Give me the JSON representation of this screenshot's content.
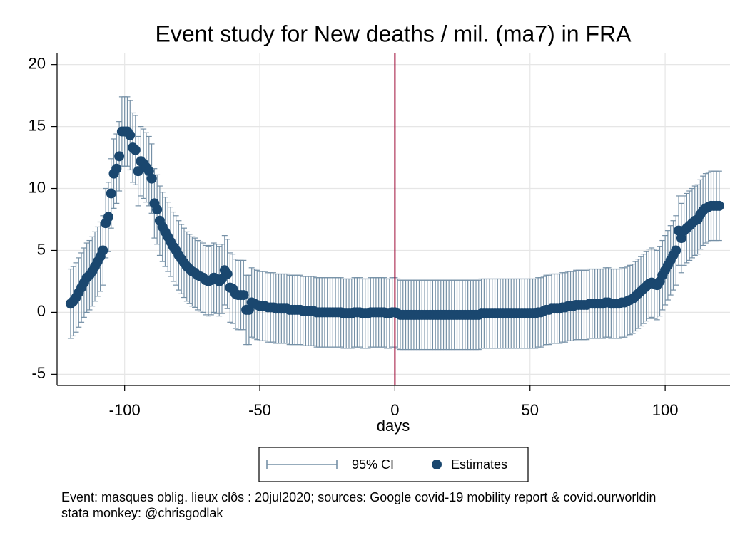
{
  "chart_data": {
    "type": "errorscatter",
    "title": "Event study for New deaths / mil. (ma7) in FRA",
    "x_label": "days",
    "notes": [
      "Event: masques oblig. lieux clôs : 20jul2020; sources: Google covid-19 mobility report & covid.ourworldin",
      "stata monkey: @chrisgodlak"
    ],
    "xlim": [
      -125,
      124
    ],
    "ylim": [
      -5.9,
      20.9
    ],
    "xticks": [
      -100,
      -50,
      0,
      50,
      100
    ],
    "yticks": [
      -5,
      0,
      5,
      10,
      15,
      20
    ],
    "grid": true,
    "reference_line": 0,
    "reference_color": "#a0103c",
    "x": [
      -120,
      -119,
      -118,
      -117,
      -116,
      -115,
      -114,
      -113,
      -112,
      -111,
      -110,
      -109,
      -108,
      -107,
      -106,
      -105,
      -104,
      -103,
      -102,
      -101,
      -100,
      -99,
      -98,
      -97,
      -96,
      -95,
      -94,
      -93,
      -92,
      -91,
      -90,
      -89,
      -88,
      -87,
      -86,
      -85,
      -84,
      -83,
      -82,
      -81,
      -80,
      -79,
      -78,
      -77,
      -76,
      -75,
      -74,
      -73,
      -72,
      -71,
      -70,
      -69,
      -68,
      -67,
      -66,
      -65,
      -64,
      -63,
      -62,
      -61,
      -60,
      -59,
      -58,
      -57,
      -56,
      -55,
      -54,
      -53,
      -52,
      -51,
      -50,
      -49,
      -48,
      -47,
      -46,
      -45,
      -44,
      -43,
      -42,
      -41,
      -40,
      -39,
      -38,
      -37,
      -36,
      -35,
      -34,
      -33,
      -32,
      -31,
      -30,
      -29,
      -28,
      -27,
      -26,
      -25,
      -24,
      -23,
      -22,
      -21,
      -20,
      -19,
      -18,
      -17,
      -16,
      -15,
      -14,
      -13,
      -12,
      -11,
      -10,
      -9,
      -8,
      -7,
      -6,
      -5,
      -4,
      -3,
      -2,
      -1,
      0,
      1,
      2,
      3,
      4,
      5,
      6,
      7,
      8,
      9,
      10,
      11,
      12,
      13,
      14,
      15,
      16,
      17,
      18,
      19,
      20,
      21,
      22,
      23,
      24,
      25,
      26,
      27,
      28,
      29,
      30,
      31,
      32,
      33,
      34,
      35,
      36,
      37,
      38,
      39,
      40,
      41,
      42,
      43,
      44,
      45,
      46,
      47,
      48,
      49,
      50,
      51,
      52,
      53,
      54,
      55,
      56,
      57,
      58,
      59,
      60,
      61,
      62,
      63,
      64,
      65,
      66,
      67,
      68,
      69,
      70,
      71,
      72,
      73,
      74,
      75,
      76,
      77,
      78,
      79,
      80,
      81,
      82,
      83,
      84,
      85,
      86,
      87,
      88,
      89,
      90,
      91,
      92,
      93,
      94,
      95,
      96,
      97,
      98,
      99,
      100,
      101,
      102,
      103,
      104,
      105,
      106,
      107,
      108,
      109,
      110,
      111,
      112,
      113,
      114,
      115,
      116,
      117,
      118,
      119,
      120
    ],
    "series": [
      {
        "name": "95% CI",
        "color": "#7590a6",
        "error": 2.8
      },
      {
        "name": "Estimates",
        "color": "#1a476f",
        "values": [
          0.7,
          0.9,
          1.2,
          1.6,
          2.0,
          2.4,
          2.8,
          3.0,
          3.3,
          3.7,
          4.1,
          4.5,
          5.0,
          7.2,
          7.7,
          9.6,
          11.2,
          11.6,
          12.6,
          14.6,
          14.6,
          14.6,
          14.3,
          13.3,
          13.1,
          11.4,
          12.2,
          12.0,
          11.7,
          11.4,
          10.8,
          8.8,
          8.3,
          7.4,
          6.9,
          6.5,
          6.1,
          5.7,
          5.3,
          5.0,
          4.6,
          4.3,
          4.0,
          3.7,
          3.5,
          3.3,
          3.2,
          3.0,
          2.9,
          2.8,
          2.6,
          2.5,
          2.6,
          2.8,
          2.7,
          2.5,
          2.7,
          3.4,
          3.1,
          2.0,
          1.9,
          1.5,
          1.4,
          1.4,
          1.4,
          0.2,
          0.2,
          0.8,
          0.7,
          0.6,
          0.5,
          0.5,
          0.5,
          0.4,
          0.4,
          0.4,
          0.3,
          0.3,
          0.3,
          0.3,
          0.3,
          0.2,
          0.2,
          0.2,
          0.2,
          0.2,
          0.1,
          0.1,
          0.1,
          0.1,
          0.1,
          0.0,
          0.0,
          0.0,
          0.0,
          0.0,
          0.0,
          0.0,
          0.0,
          0.0,
          0.0,
          -0.1,
          -0.1,
          -0.1,
          -0.1,
          0.0,
          0.0,
          0.0,
          -0.1,
          -0.1,
          -0.1,
          0.0,
          0.0,
          0.0,
          0.0,
          0.0,
          0.0,
          -0.1,
          -0.1,
          0.0,
          0.0,
          -0.1,
          -0.2,
          -0.2,
          -0.2,
          -0.2,
          -0.2,
          -0.2,
          -0.2,
          -0.2,
          -0.2,
          -0.2,
          -0.2,
          -0.2,
          -0.2,
          -0.2,
          -0.2,
          -0.2,
          -0.2,
          -0.2,
          -0.2,
          -0.2,
          -0.2,
          -0.2,
          -0.2,
          -0.2,
          -0.2,
          -0.2,
          -0.2,
          -0.2,
          -0.2,
          -0.2,
          -0.1,
          -0.1,
          -0.1,
          -0.1,
          -0.1,
          -0.1,
          -0.1,
          -0.1,
          -0.1,
          -0.1,
          -0.1,
          -0.1,
          -0.1,
          -0.1,
          -0.1,
          -0.1,
          -0.1,
          -0.1,
          -0.1,
          -0.1,
          -0.1,
          0.0,
          0.0,
          0.1,
          0.2,
          0.2,
          0.3,
          0.3,
          0.3,
          0.3,
          0.4,
          0.4,
          0.5,
          0.5,
          0.5,
          0.6,
          0.6,
          0.6,
          0.6,
          0.6,
          0.7,
          0.7,
          0.7,
          0.7,
          0.7,
          0.7,
          0.8,
          0.8,
          0.7,
          0.7,
          0.7,
          0.7,
          0.8,
          0.8,
          0.9,
          1.0,
          1.1,
          1.3,
          1.5,
          1.7,
          1.9,
          2.1,
          2.3,
          2.4,
          2.3,
          2.2,
          2.5,
          3.0,
          3.4,
          3.8,
          4.2,
          4.6,
          5.0,
          6.6,
          6.0,
          6.6,
          6.8,
          7.0,
          7.2,
          7.4,
          7.5,
          7.9,
          8.2,
          8.4,
          8.5,
          8.6,
          8.6,
          8.6,
          8.6
        ]
      }
    ]
  }
}
